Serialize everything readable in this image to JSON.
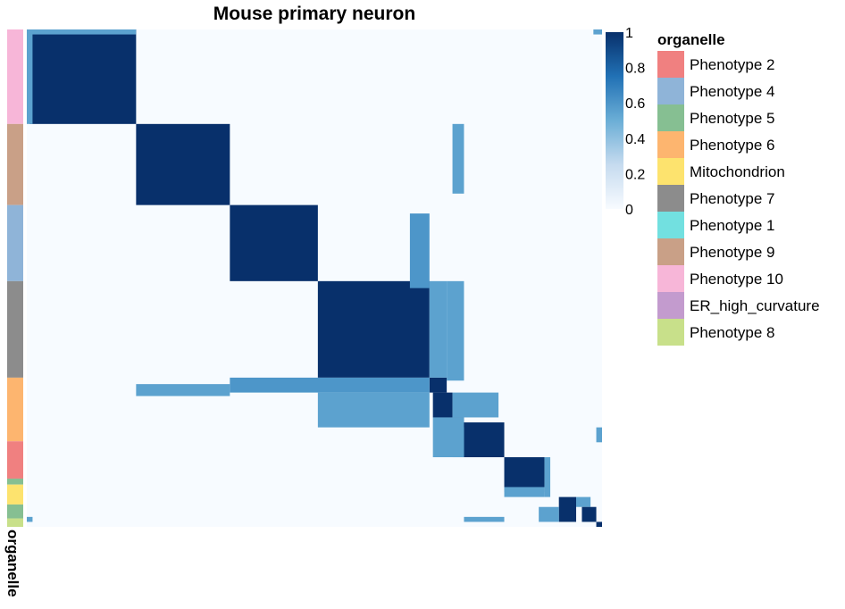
{
  "chart_data": {
    "type": "heatmap",
    "title": "Mouse primary neuron",
    "annotation_title": "organelle",
    "annotation_axis_label": "organelle",
    "colorbar": {
      "min": 0,
      "max": 1,
      "ticks": [
        "1",
        "0.8",
        "0.6",
        "0.4",
        "0.2",
        "0"
      ],
      "colors": [
        "#f7fbff",
        "#c6dbef",
        "#6baed6",
        "#2171b5",
        "#08306b"
      ]
    },
    "legend": [
      {
        "label": "Phenotype 2",
        "color": "#f08080"
      },
      {
        "label": "Phenotype 4",
        "color": "#8fb4d8"
      },
      {
        "label": "Phenotype 5",
        "color": "#86bf92"
      },
      {
        "label": "Phenotype 6",
        "color": "#fdb56f"
      },
      {
        "label": "Mitochondrion",
        "color": "#fde36e"
      },
      {
        "label": "Phenotype 7",
        "color": "#8c8c8c"
      },
      {
        "label": "Phenotype 1",
        "color": "#72e0e0"
      },
      {
        "label": "Phenotype 9",
        "color": "#c9a087"
      },
      {
        "label": "Phenotype 10",
        "color": "#f7b6d8"
      },
      {
        "label": "ER_high_curvature",
        "color": "#c39bce"
      },
      {
        "label": "Phenotype 8",
        "color": "#c8e08a"
      }
    ],
    "row_groups": [
      {
        "organelle": "Phenotype 10",
        "fraction": 0.19
      },
      {
        "organelle": "Phenotype 9",
        "fraction": 0.163
      },
      {
        "organelle": "Phenotype 4",
        "fraction": 0.153
      },
      {
        "organelle": "Phenotype 7",
        "fraction": 0.194
      },
      {
        "organelle": "Phenotype 6",
        "fraction": 0.128
      },
      {
        "organelle": "Phenotype 2",
        "fraction": 0.075
      },
      {
        "organelle": "Phenotype 5",
        "fraction": 0.012
      },
      {
        "organelle": "Mitochondrion",
        "fraction": 0.04
      },
      {
        "organelle": "Phenotype 5",
        "fraction": 0.028
      },
      {
        "organelle": "Phenotype 8",
        "fraction": 0.017
      }
    ],
    "blocks": [
      {
        "rows": [
          0.0,
          0.19
        ],
        "cols": [
          0.005,
          0.19
        ],
        "value": 1.0
      },
      {
        "rows": [
          0.19,
          0.353
        ],
        "cols": [
          0.19,
          0.353
        ],
        "value": 1.0
      },
      {
        "rows": [
          0.353,
          0.506
        ],
        "cols": [
          0.353,
          0.506
        ],
        "value": 1.0
      },
      {
        "rows": [
          0.506,
          0.7
        ],
        "cols": [
          0.506,
          0.7
        ],
        "value": 1.0
      },
      {
        "rows": [
          0.7,
          0.73
        ],
        "cols": [
          0.7,
          0.73
        ],
        "value": 1.0
      },
      {
        "rows": [
          0.506,
          0.7
        ],
        "cols": [
          0.7,
          0.73
        ],
        "value": 0.55
      },
      {
        "rows": [
          0.7,
          0.73
        ],
        "cols": [
          0.353,
          0.7
        ],
        "value": 0.6
      },
      {
        "rows": [
          0.37,
          0.52
        ],
        "cols": [
          0.666,
          0.7
        ],
        "value": 0.6
      },
      {
        "rows": [
          0.506,
          0.706
        ],
        "cols": [
          0.73,
          0.76
        ],
        "value": 0.55
      },
      {
        "rows": [
          0.73,
          0.8
        ],
        "cols": [
          0.506,
          0.7
        ],
        "value": 0.55
      },
      {
        "rows": [
          0.73,
          0.78
        ],
        "cols": [
          0.706,
          0.74
        ],
        "value": 1.0
      },
      {
        "rows": [
          0.73,
          0.78
        ],
        "cols": [
          0.74,
          0.82
        ],
        "value": 0.55
      },
      {
        "rows": [
          0.78,
          0.8
        ],
        "cols": [
          0.74,
          0.76
        ],
        "value": 1.0
      },
      {
        "rows": [
          0.78,
          0.86
        ],
        "cols": [
          0.706,
          0.76
        ],
        "value": 0.55
      },
      {
        "rows": [
          0.79,
          0.86
        ],
        "cols": [
          0.76,
          0.83
        ],
        "value": 1.0
      },
      {
        "rows": [
          0.8,
          0.86
        ],
        "cols": [
          0.74,
          0.76
        ],
        "value": 0.55
      },
      {
        "rows": [
          0.19,
          0.33
        ],
        "cols": [
          0.74,
          0.76
        ],
        "value": 0.55
      },
      {
        "rows": [
          0.713,
          0.737
        ],
        "cols": [
          0.19,
          0.353
        ],
        "value": 0.55
      },
      {
        "rows": [
          0.86,
          0.93
        ],
        "cols": [
          0.83,
          0.9
        ],
        "value": 1.0
      },
      {
        "rows": [
          0.92,
          0.94
        ],
        "cols": [
          0.83,
          0.9
        ],
        "value": 0.55
      },
      {
        "rows": [
          0.86,
          0.94
        ],
        "cols": [
          0.9,
          0.91
        ],
        "value": 0.55
      },
      {
        "rows": [
          0.94,
          0.99
        ],
        "cols": [
          0.925,
          0.955
        ],
        "value": 1.0
      },
      {
        "rows": [
          0.94,
          0.96
        ],
        "cols": [
          0.955,
          0.98
        ],
        "value": 0.55
      },
      {
        "rows": [
          0.96,
          0.99
        ],
        "cols": [
          0.89,
          0.925
        ],
        "value": 0.55
      },
      {
        "rows": [
          0.96,
          0.99
        ],
        "cols": [
          0.965,
          0.99
        ],
        "value": 1.0
      },
      {
        "rows": [
          0.99,
          1.0
        ],
        "cols": [
          0.99,
          1.0
        ],
        "value": 1.0
      },
      {
        "rows": [
          0.0,
          0.19
        ],
        "cols": [
          0.0,
          0.01
        ],
        "value": 0.55
      },
      {
        "rows": [
          0.0,
          0.01
        ],
        "cols": [
          0.005,
          0.19
        ],
        "value": 0.55
      },
      {
        "rows": [
          0.8,
          0.83
        ],
        "cols": [
          0.99,
          1.0
        ],
        "value": 0.55
      },
      {
        "rows": [
          0.98,
          0.99
        ],
        "cols": [
          0.76,
          0.83
        ],
        "value": 0.55
      },
      {
        "rows": [
          0.98,
          0.99
        ],
        "cols": [
          0.0,
          0.01
        ],
        "value": 0.55
      },
      {
        "rows": [
          0.0,
          0.01
        ],
        "cols": [
          0.985,
          1.0
        ],
        "value": 0.55
      }
    ]
  }
}
